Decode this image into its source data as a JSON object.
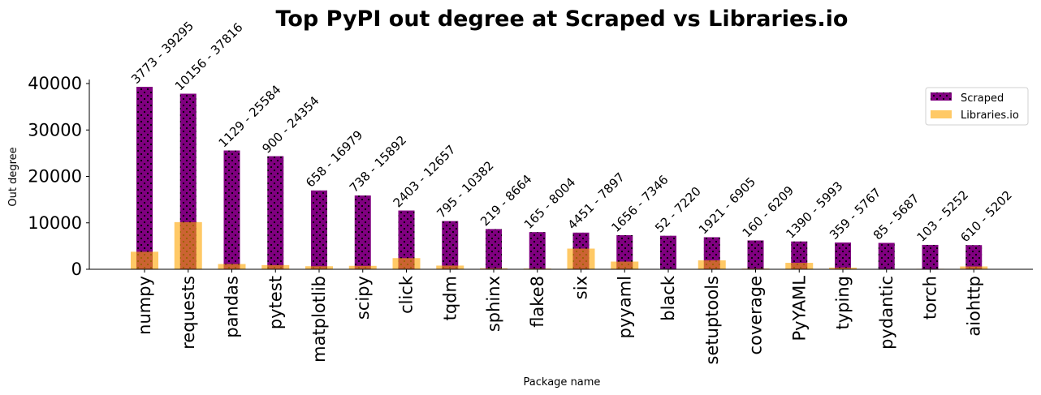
{
  "chart_data": {
    "type": "bar",
    "title": "Top PyPI out degree at Scraped vs Libraries.io",
    "xlabel": "Package name",
    "ylabel": "Out degree",
    "ylim": [
      0,
      41000
    ],
    "yticks": [
      0,
      10000,
      20000,
      30000,
      40000
    ],
    "categories": [
      "numpy",
      "requests",
      "pandas",
      "pytest",
      "matplotlib",
      "scipy",
      "click",
      "tqdm",
      "sphinx",
      "flake8",
      "six",
      "pyyaml",
      "black",
      "setuptools",
      "coverage",
      "PyYAML",
      "typing",
      "pydantic",
      "torch",
      "aiohttp"
    ],
    "series": [
      {
        "name": "Scraped",
        "color": "#800080",
        "hatch": "dots",
        "values": [
          39295,
          37816,
          25584,
          24354,
          16979,
          15892,
          12657,
          10382,
          8664,
          8004,
          7897,
          7346,
          7220,
          6905,
          6209,
          5993,
          5767,
          5687,
          5252,
          5202
        ]
      },
      {
        "name": "Libraries.io",
        "color": "#ffa500",
        "values": [
          3773,
          10156,
          1129,
          900,
          658,
          738,
          2403,
          795,
          219,
          165,
          4451,
          1656,
          52,
          1921,
          160,
          1390,
          359,
          85,
          103,
          610
        ]
      }
    ],
    "data_labels": [
      "3773 - 39295",
      "10156 - 37816",
      "1129 - 25584",
      "900 - 24354",
      "658 - 16979",
      "738 - 15892",
      "2403 - 12657",
      "795 - 10382",
      "219 - 8664",
      "165 - 8004",
      "4451 - 7897",
      "1656 - 7346",
      "52 - 7220",
      "1921 - 6905",
      "160 - 6209",
      "1390 - 5993",
      "359 - 5767",
      "85 - 5687",
      "103 - 5252",
      "610 - 5202"
    ],
    "legend_position": "top-right",
    "grid": false
  }
}
